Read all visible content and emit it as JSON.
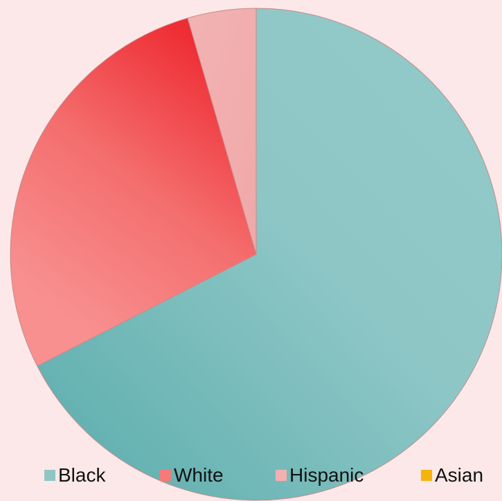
{
  "chart_data": {
    "type": "pie",
    "title": "",
    "series": [
      {
        "name": "Black",
        "value": 67.5,
        "color": "#8ec6c6"
      },
      {
        "name": "White",
        "value": 28.0,
        "color": "#f57a7a"
      },
      {
        "name": "Hispanic",
        "value": 4.5,
        "color": "#f3b0b0"
      },
      {
        "name": "Asian",
        "value": 0,
        "color": "#f5b40c"
      }
    ],
    "legend_position": "bottom"
  }
}
